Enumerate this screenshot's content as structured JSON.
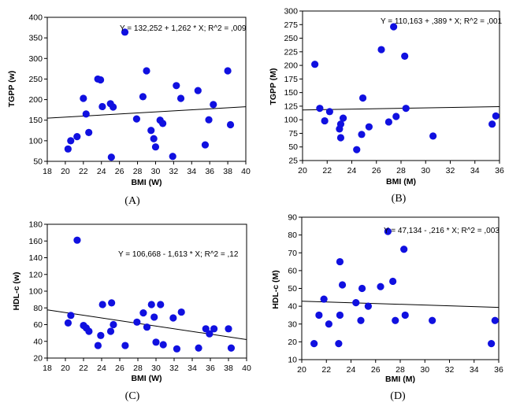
{
  "chart_data": [
    {
      "type": "scatter",
      "caption": "(A)",
      "xlabel": "BMI (W)",
      "ylabel": "TGPP (w)",
      "xlim": [
        18,
        40
      ],
      "ylim": [
        50,
        400
      ],
      "xticks": [
        18,
        20,
        22,
        24,
        26,
        28,
        30,
        32,
        34,
        36,
        38,
        40
      ],
      "yticks": [
        50,
        100,
        150,
        200,
        250,
        300,
        350,
        400
      ],
      "equation": "Y = 132,252 + 1,262 * X; R^2 = ,009",
      "regression": {
        "intercept": 132.252,
        "slope": 1.262
      },
      "point_color": "#1010e0",
      "points": [
        [
          20.3,
          80
        ],
        [
          20.6,
          100
        ],
        [
          21.3,
          110
        ],
        [
          22.0,
          203
        ],
        [
          22.3,
          165
        ],
        [
          22.6,
          120
        ],
        [
          23.6,
          250
        ],
        [
          23.9,
          248
        ],
        [
          24.1,
          183
        ],
        [
          25.1,
          60
        ],
        [
          25.0,
          190
        ],
        [
          25.3,
          182
        ],
        [
          26.6,
          364
        ],
        [
          27.9,
          153
        ],
        [
          28.6,
          207
        ],
        [
          29.0,
          270
        ],
        [
          29.5,
          125
        ],
        [
          29.8,
          105
        ],
        [
          30.0,
          85
        ],
        [
          30.5,
          150
        ],
        [
          30.8,
          142
        ],
        [
          31.9,
          62
        ],
        [
          32.3,
          234
        ],
        [
          32.8,
          203
        ],
        [
          34.7,
          222
        ],
        [
          35.5,
          90
        ],
        [
          35.9,
          151
        ],
        [
          36.4,
          188
        ],
        [
          38.0,
          270
        ],
        [
          38.3,
          139
        ]
      ]
    },
    {
      "type": "scatter",
      "caption": "(B)",
      "xlabel": "BMI (M)",
      "ylabel": "TGPP (M)",
      "xlim": [
        20,
        36
      ],
      "ylim": [
        25,
        300
      ],
      "xticks": [
        20,
        22,
        24,
        26,
        28,
        30,
        32,
        34,
        36
      ],
      "yticks": [
        25,
        50,
        75,
        100,
        125,
        150,
        175,
        200,
        225,
        250,
        275,
        300
      ],
      "equation": "Y = 110,163 + ,389 * X; R^2 = ,001",
      "regression": {
        "intercept": 110.163,
        "slope": 0.389
      },
      "point_color": "#1010e0",
      "points": [
        [
          21.0,
          202
        ],
        [
          21.4,
          121
        ],
        [
          21.8,
          98
        ],
        [
          22.2,
          115
        ],
        [
          23.0,
          83
        ],
        [
          23.1,
          67
        ],
        [
          23.1,
          92
        ],
        [
          23.3,
          103
        ],
        [
          24.4,
          45
        ],
        [
          24.8,
          73
        ],
        [
          24.9,
          140
        ],
        [
          25.4,
          87
        ],
        [
          26.4,
          229
        ],
        [
          27.0,
          96
        ],
        [
          27.4,
          271
        ],
        [
          27.6,
          106
        ],
        [
          28.3,
          217
        ],
        [
          28.4,
          121
        ],
        [
          30.6,
          70
        ],
        [
          35.4,
          92
        ],
        [
          35.7,
          107
        ]
      ]
    },
    {
      "type": "scatter",
      "caption": "(C)",
      "xlabel": "BMI (W)",
      "ylabel": "HDL-c (w)",
      "xlim": [
        18,
        40
      ],
      "ylim": [
        20,
        180
      ],
      "xticks": [
        18,
        20,
        22,
        24,
        26,
        28,
        30,
        32,
        34,
        36,
        38,
        40
      ],
      "yticks": [
        20,
        40,
        60,
        80,
        100,
        120,
        140,
        160,
        180
      ],
      "equation": "Y = 106,668 - 1,613 * X; R^2 = ,12",
      "regression": {
        "intercept": 106.668,
        "slope": -1.613
      },
      "point_color": "#1010e0",
      "points": [
        [
          20.3,
          62
        ],
        [
          20.6,
          71
        ],
        [
          21.3,
          161
        ],
        [
          22.0,
          59
        ],
        [
          22.3,
          56
        ],
        [
          22.6,
          52
        ],
        [
          23.6,
          35
        ],
        [
          23.9,
          47
        ],
        [
          24.1,
          84
        ],
        [
          25.1,
          86
        ],
        [
          25.0,
          52
        ],
        [
          25.3,
          60
        ],
        [
          26.6,
          35
        ],
        [
          27.9,
          63
        ],
        [
          28.6,
          74
        ],
        [
          29.0,
          57
        ],
        [
          29.5,
          84
        ],
        [
          29.8,
          69
        ],
        [
          30.0,
          39
        ],
        [
          30.5,
          84
        ],
        [
          30.8,
          36
        ],
        [
          31.9,
          68
        ],
        [
          32.3,
          31
        ],
        [
          32.8,
          75
        ],
        [
          34.7,
          32
        ],
        [
          35.5,
          55
        ],
        [
          35.9,
          49
        ],
        [
          36.4,
          55
        ],
        [
          38.0,
          55
        ],
        [
          38.3,
          32
        ]
      ]
    },
    {
      "type": "scatter",
      "caption": "(D)",
      "xlabel": "BMI (M)",
      "ylabel": "HDL-c (M)",
      "xlim": [
        20,
        36
      ],
      "ylim": [
        10,
        90
      ],
      "xticks": [
        20,
        22,
        24,
        26,
        28,
        30,
        32,
        34,
        36
      ],
      "yticks": [
        10,
        20,
        30,
        40,
        50,
        60,
        70,
        80,
        90
      ],
      "equation": "Y = 47,134 - ,216 * X; R^2 = ,003",
      "regression": {
        "intercept": 47.134,
        "slope": -0.216
      },
      "point_color": "#1010e0",
      "points": [
        [
          21.0,
          19
        ],
        [
          21.4,
          35
        ],
        [
          21.8,
          44
        ],
        [
          22.2,
          30
        ],
        [
          23.0,
          19
        ],
        [
          23.1,
          35
        ],
        [
          23.1,
          65
        ],
        [
          23.3,
          52
        ],
        [
          24.4,
          42
        ],
        [
          24.8,
          32
        ],
        [
          24.9,
          50
        ],
        [
          25.4,
          40
        ],
        [
          26.4,
          51
        ],
        [
          27.0,
          82
        ],
        [
          27.4,
          54
        ],
        [
          27.6,
          32
        ],
        [
          28.3,
          72
        ],
        [
          28.4,
          35
        ],
        [
          30.6,
          32
        ],
        [
          35.4,
          19
        ],
        [
          35.7,
          32
        ]
      ]
    }
  ]
}
